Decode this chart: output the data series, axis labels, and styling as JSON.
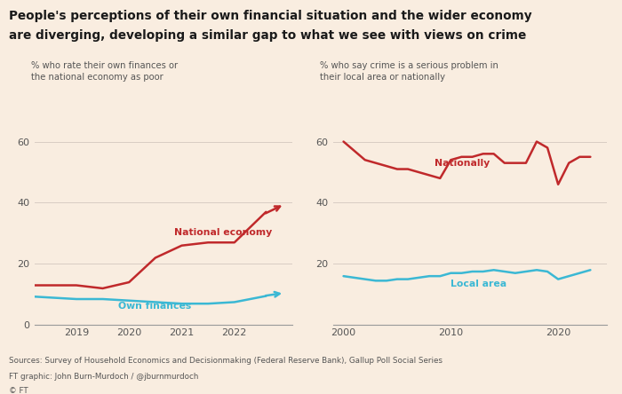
{
  "title_line1": "People's perceptions of their own financial situation and the wider economy",
  "title_line2": "are diverging, developing a similar gap to what we see with views on crime",
  "bg_color": "#f9ede0",
  "left_subtitle": "% who rate their own finances or\nthe national economy as poor",
  "right_subtitle": "% who say crime is a serious problem in\ntheir local area or nationally",
  "footer1": "Sources: Survey of Household Economics and Decisionmaking (Federal Reserve Bank), Gallup Poll Social Series",
  "footer2": "FT graphic: John Burn-Murdoch / @jburnmurdoch",
  "footer3": "© FT",
  "left_ylim": [
    0,
    67
  ],
  "left_yticks": [
    0,
    20,
    40,
    60
  ],
  "right_ylim": [
    0,
    67
  ],
  "right_yticks": [
    20,
    40,
    60
  ],
  "red_color": "#c0292b",
  "blue_color": "#3bb8d4",
  "grid_color": "#d8ccc4",
  "national_economy_x": [
    2018.0,
    2018.5,
    2019.0,
    2019.5,
    2020.0,
    2020.5,
    2021.0,
    2021.5,
    2022.0,
    2022.6
  ],
  "national_economy_y": [
    13,
    13,
    13,
    12,
    14,
    22,
    26,
    27,
    27,
    37
  ],
  "own_finances_x": [
    2018.0,
    2018.5,
    2019.0,
    2019.5,
    2020.0,
    2020.5,
    2021.0,
    2021.5,
    2022.0,
    2022.6
  ],
  "own_finances_y": [
    9.5,
    9,
    8.5,
    8.5,
    8,
    7.5,
    7,
    7,
    7.5,
    9.5
  ],
  "nationally_x": [
    2000,
    2001,
    2002,
    2003,
    2004,
    2005,
    2006,
    2007,
    2008,
    2009,
    2010,
    2011,
    2012,
    2013,
    2014,
    2015,
    2016,
    2017,
    2018,
    2019,
    2020,
    2021,
    2022,
    2023
  ],
  "nationally_y": [
    60,
    57,
    54,
    53,
    52,
    51,
    51,
    50,
    49,
    48,
    54,
    55,
    55,
    56,
    56,
    53,
    53,
    53,
    60,
    58,
    46,
    53,
    55,
    55
  ],
  "local_area_x": [
    2000,
    2001,
    2002,
    2003,
    2004,
    2005,
    2006,
    2007,
    2008,
    2009,
    2010,
    2011,
    2012,
    2013,
    2014,
    2015,
    2016,
    2017,
    2018,
    2019,
    2020,
    2021,
    2022,
    2023
  ],
  "local_area_y": [
    16,
    15.5,
    15,
    14.5,
    14.5,
    15,
    15,
    15.5,
    16,
    16,
    17,
    17,
    17.5,
    17.5,
    18,
    17.5,
    17,
    17.5,
    18,
    17.5,
    15,
    16,
    17,
    18
  ]
}
